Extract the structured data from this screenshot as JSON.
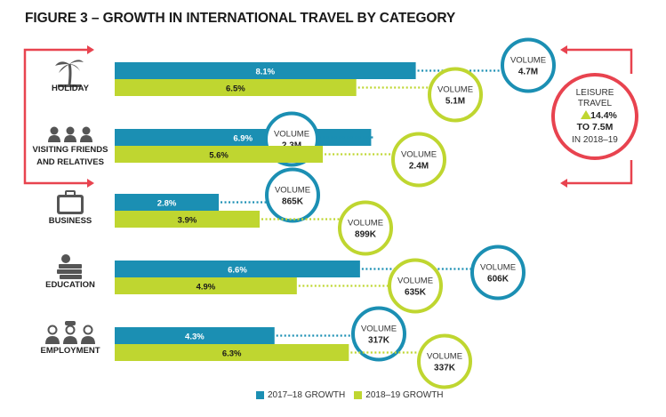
{
  "title": "FIGURE 3 – GROWTH IN INTERNATIONAL TRAVEL BY CATEGORY",
  "colors": {
    "growth_2017_18": "#1b8fb3",
    "growth_2018_19": "#bfd630",
    "leisure_accent": "#e8434f",
    "icon": "#555555"
  },
  "chart_data": {
    "type": "bar",
    "orientation": "horizontal",
    "categories": [
      "HOLIDAY",
      "VISITING FRIENDS AND RELATIVES",
      "BUSINESS",
      "EDUCATION",
      "EMPLOYMENT"
    ],
    "category_icons": [
      "palm-tree-icon",
      "people-group-icon",
      "briefcase-icon",
      "books-apple-icon",
      "workers-icon"
    ],
    "series": [
      {
        "name": "2017–18 GROWTH",
        "values": [
          8.1,
          6.9,
          2.8,
          6.6,
          4.3
        ],
        "labels": [
          "8.1%",
          "6.9%",
          "2.8%",
          "6.6%",
          "4.3%"
        ],
        "volume_word": "VOLUME",
        "volumes": [
          "4.7M",
          "2.3M",
          "865K",
          "606K",
          "317K"
        ]
      },
      {
        "name": "2018–19 GROWTH",
        "values": [
          6.5,
          5.6,
          3.9,
          4.9,
          6.3
        ],
        "labels": [
          "6.5%",
          "5.6%",
          "3.9%",
          "4.9%",
          "6.3%"
        ],
        "volume_word": "VOLUME",
        "volumes": [
          "5.1M",
          "2.4M",
          "899K",
          "635K",
          "337K"
        ]
      }
    ],
    "legend": {
      "placement": "bottom",
      "items": [
        "2017–18 GROWTH",
        "2018–19 GROWTH"
      ]
    },
    "annotation": {
      "lines": [
        "LEISURE",
        "TRAVEL"
      ],
      "change": "14.4%",
      "to_line": "TO 7.5M",
      "period": "IN 2018–19",
      "applies_to": [
        "HOLIDAY",
        "VISITING FRIENDS AND RELATIVES"
      ]
    }
  }
}
